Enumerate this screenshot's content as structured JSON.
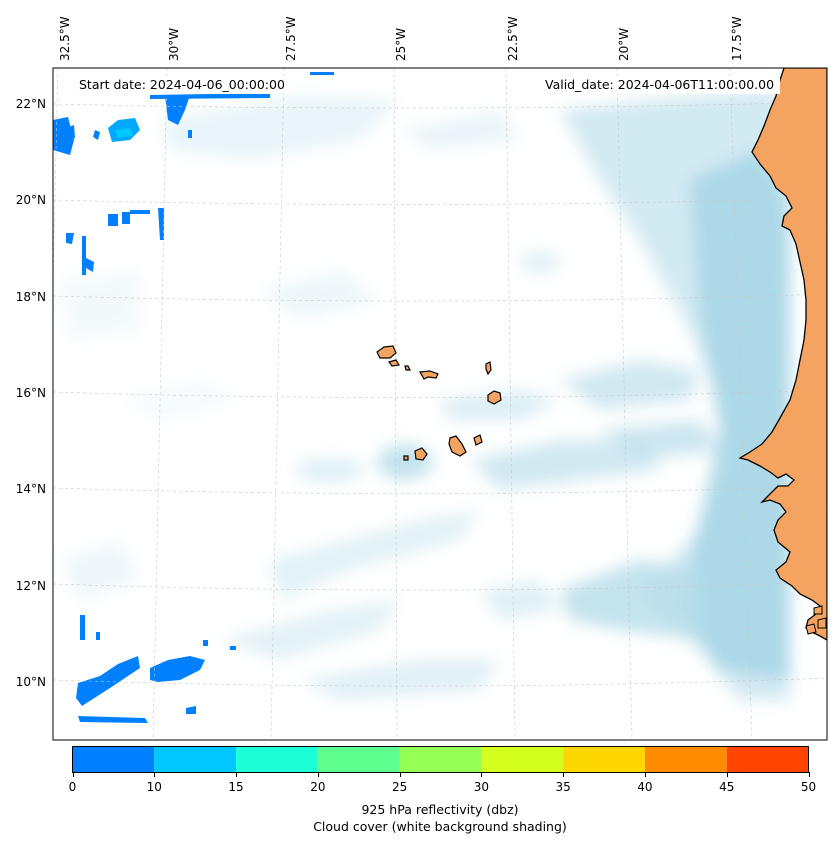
{
  "map": {
    "start_date": "Start date: 2024-04-06_00:00:00",
    "valid_date": "Valid_date: 2024-04-06T11:00:00.00",
    "longitude_labels": [
      "32.5°W",
      "30°W",
      "27.5°W",
      "25°W",
      "22.5°W",
      "20°W",
      "17.5°W"
    ],
    "latitude_labels": [
      "22°N",
      "20°N",
      "18°N",
      "16°N",
      "14°N",
      "12°N",
      "10°N"
    ],
    "land_color": "#f4a460",
    "cloud_color": "#add8e6"
  },
  "colorbar": {
    "ticks": [
      "0",
      "10",
      "15",
      "20",
      "25",
      "30",
      "35",
      "40",
      "45",
      "50"
    ],
    "colors": [
      "#0080ff",
      "#00c8ff",
      "#1effd8",
      "#5eff8f",
      "#96ff56",
      "#d4ff1e",
      "#ffd700",
      "#ff8c00",
      "#ff4500"
    ],
    "label_line1": "925 hPa reflectivity (dbz)",
    "label_line2": "Cloud cover (white background shading)"
  }
}
